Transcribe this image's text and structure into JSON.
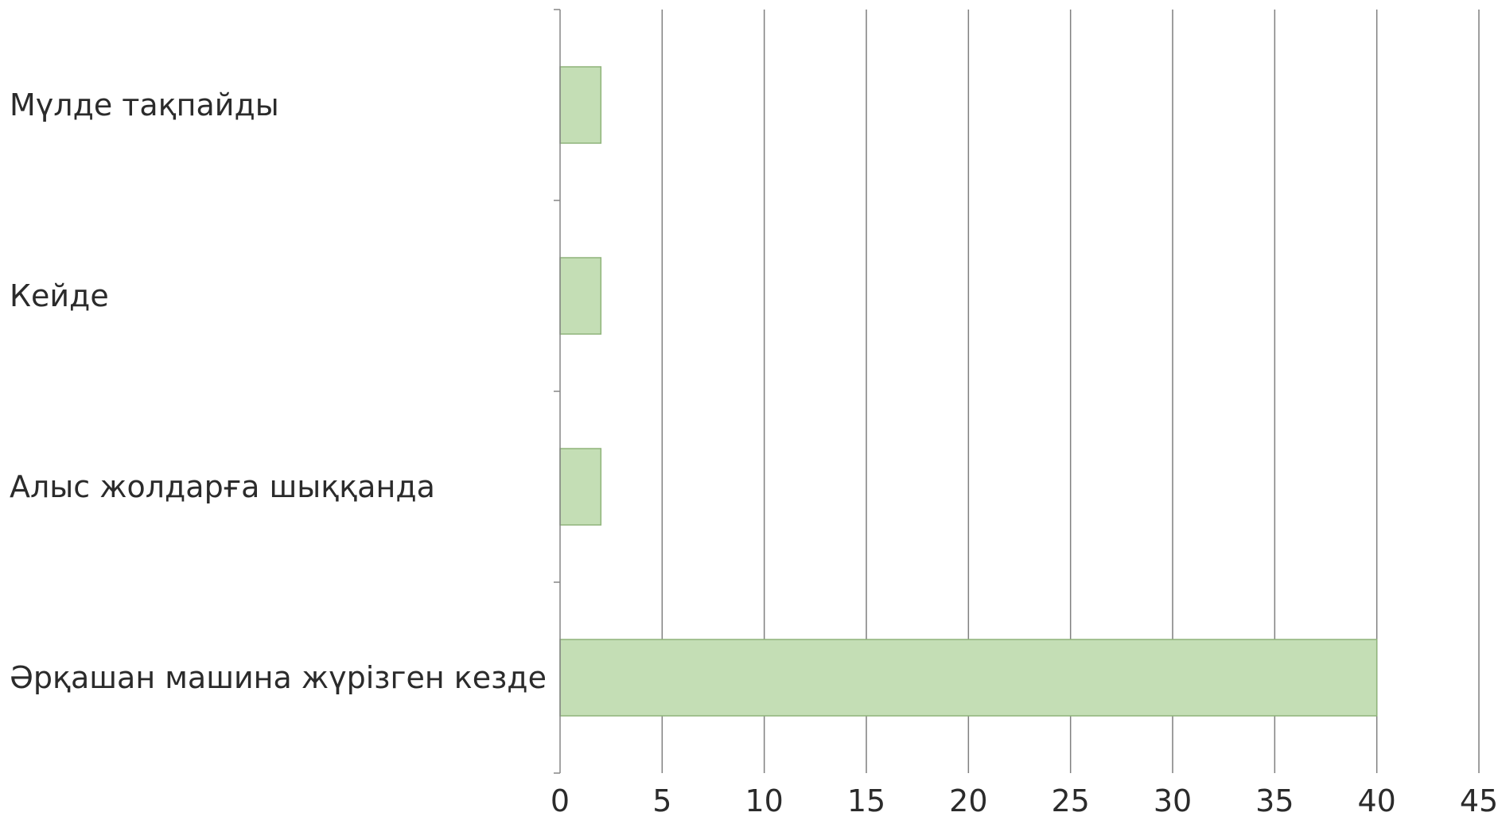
{
  "chart_data": {
    "type": "bar",
    "orientation": "horizontal",
    "categories": [
      "Мүлде тақпайды",
      "Кейде",
      "Алыс жолдарға шыққанда",
      "Әрқашан машина жүрізген кезде"
    ],
    "values": [
      2,
      2,
      2,
      40
    ],
    "x_ticks": [
      "0",
      "5",
      "10",
      "15",
      "20",
      "25",
      "30",
      "35",
      "40",
      "45"
    ],
    "xlim": [
      0,
      45
    ],
    "title": "",
    "xlabel": "",
    "ylabel": "",
    "grid": true,
    "legend": "none",
    "colors": {
      "bar_fill": "#c4deb5",
      "bar_stroke": "#8fb47a",
      "grid": "#7f7f7f",
      "text": "#2b2b2b"
    }
  }
}
